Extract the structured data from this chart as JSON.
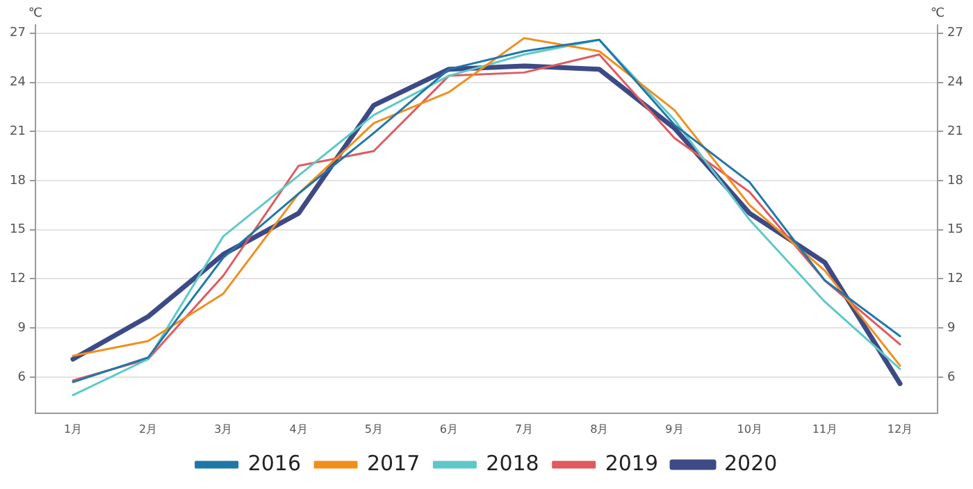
{
  "chart_data": {
    "type": "line",
    "ylabel": "℃",
    "y2label": "℃",
    "categories": [
      "1月",
      "2月",
      "3月",
      "4月",
      "5月",
      "6月",
      "7月",
      "8月",
      "9月",
      "10月",
      "11月",
      "12月"
    ],
    "ylim": [
      3.8,
      27.5
    ],
    "yticks": [
      6,
      9,
      12,
      15,
      18,
      21,
      24,
      27
    ],
    "y2lim": [
      3.8,
      27.5
    ],
    "y2ticks": [
      6,
      9,
      12,
      15,
      18,
      21,
      24,
      27
    ],
    "grid": "y",
    "legend": "bottom",
    "marker": "none",
    "line_style": "solid",
    "series": [
      {
        "name": "2016",
        "color": "#1f77a8",
        "values": [
          5.7,
          7.2,
          13.3,
          17.2,
          20.9,
          24.8,
          25.9,
          26.6,
          21.4,
          17.9,
          11.9,
          8.5
        ]
      },
      {
        "name": "2017",
        "color": "#f28e1c",
        "values": [
          7.3,
          8.2,
          11.1,
          17.2,
          21.5,
          23.4,
          26.7,
          25.9,
          22.3,
          16.5,
          12.5,
          6.7
        ]
      },
      {
        "name": "2018",
        "color": "#5ec8c8",
        "values": [
          4.9,
          7.1,
          14.6,
          18.3,
          22.0,
          24.4,
          25.7,
          26.6,
          21.7,
          15.6,
          10.6,
          6.5
        ]
      },
      {
        "name": "2019",
        "color": "#e05a5e",
        "values": [
          5.8,
          7.1,
          12.2,
          18.9,
          19.8,
          24.4,
          24.6,
          25.7,
          20.6,
          17.3,
          11.9,
          8.0
        ]
      },
      {
        "name": "2020",
        "color": "#3d4a86",
        "values": [
          7.1,
          9.7,
          13.5,
          16.0,
          22.6,
          24.8,
          25.0,
          24.8,
          21.2,
          16.0,
          13.0,
          5.6
        ]
      }
    ]
  }
}
